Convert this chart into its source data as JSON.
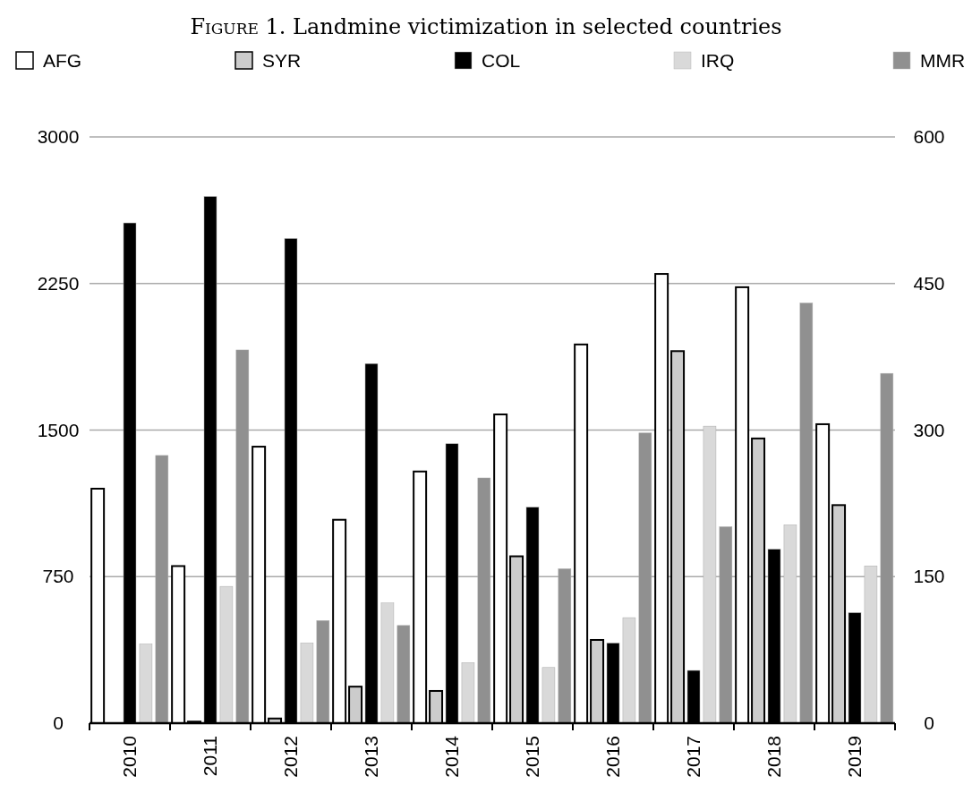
{
  "chart_data": {
    "type": "bar",
    "title": "Figure 1. Landmine victimization in selected countries",
    "categories": [
      "2010",
      "2011",
      "2012",
      "2013",
      "2014",
      "2015",
      "2016",
      "2017",
      "2018",
      "2019"
    ],
    "series": [
      {
        "name": "AFG",
        "color": "#ffffff",
        "values": [
          1200,
          804,
          1415,
          1041,
          1288,
          1580,
          1938,
          2299,
          2231,
          1530
        ]
      },
      {
        "name": "SYR",
        "color": "#cccccc",
        "values": [
          0,
          8,
          24,
          187,
          165,
          854,
          426,
          1904,
          1457,
          1116
        ]
      },
      {
        "name": "COL",
        "color": "#000000",
        "axis": "y2",
        "values": [
          512,
          539,
          496,
          368,
          286,
          221,
          82,
          54,
          178,
          113
        ]
      },
      {
        "name": "IRQ",
        "color": "#d9d9d9",
        "axis": "y2",
        "values": [
          81,
          140,
          82,
          123,
          62,
          57,
          108,
          304,
          203,
          161
        ]
      },
      {
        "name": "MMR",
        "color": "#909090",
        "axis": "y2",
        "values": [
          274,
          382,
          105,
          100,
          251,
          158,
          297,
          201,
          430,
          358
        ]
      }
    ],
    "ylim": [
      0,
      3000
    ],
    "yticks": [
      0,
      750,
      1500,
      2250,
      3000
    ],
    "y2lim": [
      0,
      600
    ],
    "y2ticks": [
      0,
      150,
      300,
      450,
      600
    ],
    "grid": "y",
    "legend": "top"
  }
}
